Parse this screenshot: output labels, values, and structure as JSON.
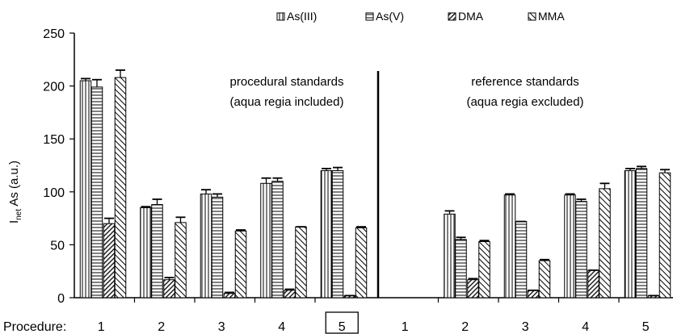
{
  "chart_data": {
    "type": "bar",
    "ylabel": "I_net As (a.u.)",
    "ylim": [
      0,
      250
    ],
    "yticks": [
      0,
      50,
      100,
      150,
      200,
      250
    ],
    "x_prefix_label": "Procedure:",
    "legend_position": "top",
    "series": [
      {
        "name": "As(III)",
        "pattern": "vertical"
      },
      {
        "name": "As(V)",
        "pattern": "horizontal"
      },
      {
        "name": "DMA",
        "pattern": "diagonal-dense"
      },
      {
        "name": "MMA",
        "pattern": "diagonal-sparse"
      }
    ],
    "groups": [
      {
        "title_lines": [
          "procedural standards",
          "(aqua regia included)"
        ],
        "categories": [
          "1",
          "2",
          "3",
          "4",
          "5"
        ],
        "boxed_category": "5",
        "values": {
          "As(III)": [
            205,
            85,
            98,
            108,
            120
          ],
          "As(V)": [
            199,
            88,
            95,
            110,
            120
          ],
          "DMA": [
            70,
            17,
            4,
            7,
            2
          ],
          "MMA": [
            208,
            71,
            63,
            67,
            66
          ]
        },
        "errors": {
          "As(III)": [
            2,
            1,
            4,
            5,
            2
          ],
          "As(V)": [
            7,
            5,
            3,
            3,
            3
          ],
          "DMA": [
            5,
            2,
            1,
            1,
            0
          ],
          "MMA": [
            7,
            5,
            1,
            0,
            1
          ]
        }
      },
      {
        "title_lines": [
          "reference standards",
          "(aqua regia excluded)"
        ],
        "categories": [
          "1",
          "2",
          "3",
          "4",
          "5"
        ],
        "values": {
          "As(III)": [
            0,
            79,
            97,
            97,
            120
          ],
          "As(V)": [
            0,
            55,
            72,
            91,
            122
          ],
          "DMA": [
            0,
            17,
            7,
            26,
            2
          ],
          "MMA": [
            0,
            53,
            35,
            103,
            118
          ]
        },
        "errors": {
          "As(III)": [
            0,
            3,
            1,
            1,
            2
          ],
          "As(V)": [
            0,
            2,
            0,
            2,
            2
          ],
          "DMA": [
            0,
            1,
            0,
            0,
            0
          ],
          "MMA": [
            0,
            1,
            1,
            5,
            3
          ]
        }
      }
    ]
  }
}
